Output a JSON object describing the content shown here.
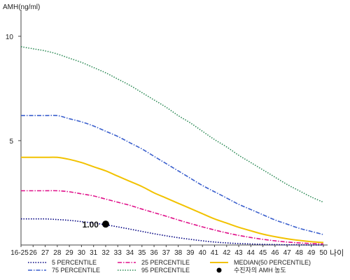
{
  "chart_data": {
    "type": "line",
    "ylabel": "AMH(ng/ml)",
    "xlabel": "나이",
    "x_ticks": [
      "16-25",
      "26",
      "27",
      "28",
      "29",
      "30",
      "31",
      "32",
      "33",
      "34",
      "35",
      "36",
      "37",
      "38",
      "39",
      "40",
      "41",
      "42",
      "43",
      "44",
      "45",
      "46",
      "47",
      "48",
      "49",
      "50"
    ],
    "y_ticks": [
      5,
      10
    ],
    "ylim": [
      0,
      11
    ],
    "series": [
      {
        "name": "95 PERCENTILE",
        "color": "#2e8b57",
        "dash": "dotted",
        "values": [
          9.5,
          9.4,
          9.3,
          9.15,
          8.95,
          8.75,
          8.5,
          8.25,
          7.95,
          7.65,
          7.3,
          6.95,
          6.6,
          6.2,
          5.85,
          5.45,
          5.05,
          4.7,
          4.3,
          3.95,
          3.6,
          3.25,
          2.9,
          2.6,
          2.3,
          2.05
        ]
      },
      {
        "name": "75 PERCENTILE",
        "color": "#3a5fcd",
        "dash": "dashdot",
        "values": [
          6.2,
          6.2,
          6.2,
          6.2,
          6.05,
          5.9,
          5.7,
          5.45,
          5.2,
          4.9,
          4.6,
          4.25,
          3.9,
          3.55,
          3.2,
          2.85,
          2.55,
          2.25,
          1.95,
          1.7,
          1.45,
          1.2,
          1.0,
          0.8,
          0.65,
          0.5
        ]
      },
      {
        "name": "MEDIAN(50 PERCENTILE)",
        "color": "#f2c200",
        "dash": "solid",
        "values": [
          4.2,
          4.2,
          4.2,
          4.2,
          4.1,
          3.95,
          3.75,
          3.55,
          3.3,
          3.05,
          2.8,
          2.5,
          2.25,
          2.0,
          1.75,
          1.5,
          1.25,
          1.05,
          0.85,
          0.68,
          0.52,
          0.4,
          0.3,
          0.22,
          0.16,
          0.12
        ]
      },
      {
        "name": "25 PERCENTILE",
        "color": "#e0108a",
        "dash": "dashdot",
        "values": [
          2.6,
          2.6,
          2.6,
          2.6,
          2.55,
          2.45,
          2.35,
          2.2,
          2.05,
          1.9,
          1.72,
          1.55,
          1.38,
          1.2,
          1.03,
          0.87,
          0.72,
          0.58,
          0.46,
          0.36,
          0.27,
          0.2,
          0.14,
          0.1,
          0.07,
          0.05
        ]
      },
      {
        "name": "5 PERCENTILE",
        "color": "#000080",
        "dash": "dotted",
        "values": [
          1.25,
          1.25,
          1.25,
          1.22,
          1.18,
          1.12,
          1.05,
          0.97,
          0.87,
          0.76,
          0.65,
          0.54,
          0.44,
          0.35,
          0.27,
          0.2,
          0.14,
          0.1,
          0.07,
          0.05,
          0.03,
          0.02,
          0.01,
          0.01,
          0.0,
          0.0
        ]
      }
    ],
    "point": {
      "name": "수진자의 AMH 농도",
      "x_index": 7,
      "value": 1.0,
      "label": "1.00",
      "color": "#000000"
    },
    "legend_order": [
      "5 PERCENTILE",
      "25 PERCENTILE",
      "MEDIAN(50 PERCENTILE)",
      "75 PERCENTILE",
      "95 PERCENTILE",
      "수진자의 AMH 농도"
    ],
    "legend_position": "bottom"
  }
}
